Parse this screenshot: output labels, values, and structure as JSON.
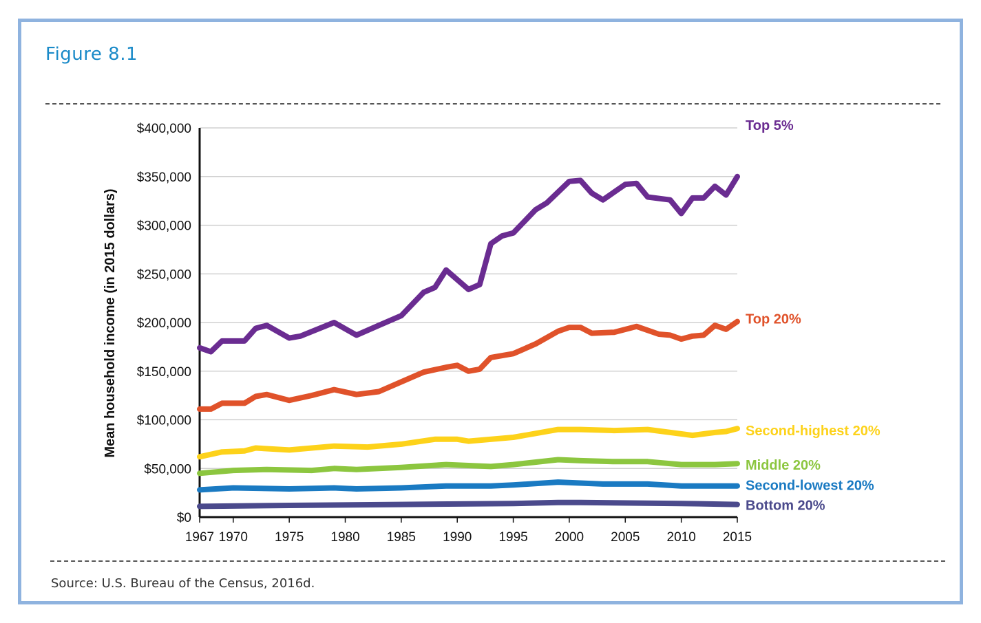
{
  "figure_title": "Figure 8.1",
  "source": "Source: U.S. Bureau of the Census, 2016d.",
  "colors": {
    "frame": "#8fb3df",
    "title": "#1a8ac8"
  },
  "chart_data": {
    "type": "line",
    "title": "",
    "xlabel": "",
    "ylabel": "Mean household income (in 2015 dollars)",
    "xlim": [
      1967,
      2015
    ],
    "ylim": [
      0,
      400000
    ],
    "xticks": [
      1967,
      1970,
      1975,
      1980,
      1985,
      1990,
      1995,
      2000,
      2005,
      2010,
      2015
    ],
    "yticks": [
      0,
      50000,
      100000,
      150000,
      200000,
      250000,
      300000,
      350000,
      400000
    ],
    "ytick_labels": [
      "$0",
      "$50,000",
      "$100,000",
      "$150,000",
      "$200,000",
      "$250,000",
      "$300,000",
      "$350,000",
      "$400,000"
    ],
    "grid": "horizontal",
    "legend": "direct labels at right end of lines",
    "series": [
      {
        "name": "Top 5%",
        "color": "#6a2c91",
        "points": [
          [
            1967,
            174000
          ],
          [
            1968,
            170000
          ],
          [
            1969,
            181000
          ],
          [
            1971,
            181000
          ],
          [
            1972,
            194000
          ],
          [
            1973,
            197000
          ],
          [
            1975,
            184000
          ],
          [
            1976,
            186000
          ],
          [
            1979,
            200000
          ],
          [
            1981,
            187000
          ],
          [
            1983,
            197000
          ],
          [
            1985,
            207000
          ],
          [
            1987,
            231000
          ],
          [
            1988,
            236000
          ],
          [
            1989,
            254000
          ],
          [
            1991,
            234000
          ],
          [
            1992,
            239000
          ],
          [
            1993,
            281000
          ],
          [
            1994,
            289000
          ],
          [
            1995,
            292000
          ],
          [
            1997,
            316000
          ],
          [
            1998,
            323000
          ],
          [
            2000,
            345000
          ],
          [
            2001,
            346000
          ],
          [
            2002,
            333000
          ],
          [
            2003,
            326000
          ],
          [
            2005,
            342000
          ],
          [
            2006,
            343000
          ],
          [
            2007,
            329000
          ],
          [
            2009,
            326000
          ],
          [
            2010,
            312000
          ],
          [
            2011,
            328000
          ],
          [
            2012,
            328000
          ],
          [
            2013,
            340000
          ],
          [
            2014,
            331000
          ],
          [
            2015,
            350000
          ]
        ]
      },
      {
        "name": "Top 20%",
        "color": "#e0522a",
        "points": [
          [
            1967,
            111000
          ],
          [
            1968,
            111000
          ],
          [
            1969,
            117000
          ],
          [
            1971,
            117000
          ],
          [
            1972,
            124000
          ],
          [
            1973,
            126000
          ],
          [
            1975,
            120000
          ],
          [
            1977,
            125000
          ],
          [
            1979,
            131000
          ],
          [
            1981,
            126000
          ],
          [
            1983,
            129000
          ],
          [
            1985,
            139000
          ],
          [
            1987,
            149000
          ],
          [
            1989,
            154000
          ],
          [
            1990,
            156000
          ],
          [
            1991,
            150000
          ],
          [
            1992,
            152000
          ],
          [
            1993,
            164000
          ],
          [
            1995,
            168000
          ],
          [
            1997,
            178000
          ],
          [
            1999,
            191000
          ],
          [
            2000,
            195000
          ],
          [
            2001,
            195000
          ],
          [
            2002,
            189000
          ],
          [
            2004,
            190000
          ],
          [
            2006,
            196000
          ],
          [
            2008,
            188000
          ],
          [
            2009,
            187000
          ],
          [
            2010,
            183000
          ],
          [
            2011,
            186000
          ],
          [
            2012,
            187000
          ],
          [
            2013,
            197000
          ],
          [
            2014,
            193000
          ],
          [
            2015,
            201000
          ]
        ]
      },
      {
        "name": "Second-highest 20%",
        "color": "#fdd21a",
        "points": [
          [
            1967,
            62000
          ],
          [
            1969,
            67000
          ],
          [
            1971,
            68000
          ],
          [
            1972,
            71000
          ],
          [
            1975,
            69000
          ],
          [
            1979,
            73000
          ],
          [
            1982,
            72000
          ],
          [
            1985,
            75000
          ],
          [
            1988,
            80000
          ],
          [
            1990,
            80000
          ],
          [
            1991,
            78000
          ],
          [
            1995,
            82000
          ],
          [
            1997,
            86000
          ],
          [
            1999,
            90000
          ],
          [
            2001,
            90000
          ],
          [
            2004,
            89000
          ],
          [
            2007,
            90000
          ],
          [
            2009,
            87000
          ],
          [
            2011,
            84000
          ],
          [
            2013,
            87000
          ],
          [
            2014,
            88000
          ],
          [
            2015,
            91000
          ]
        ]
      },
      {
        "name": "Middle 20%",
        "color": "#8cc63f",
        "points": [
          [
            1967,
            45000
          ],
          [
            1970,
            48000
          ],
          [
            1973,
            49000
          ],
          [
            1977,
            48000
          ],
          [
            1979,
            50000
          ],
          [
            1981,
            49000
          ],
          [
            1985,
            51000
          ],
          [
            1989,
            54000
          ],
          [
            1993,
            52000
          ],
          [
            1995,
            54000
          ],
          [
            1999,
            59000
          ],
          [
            2001,
            58000
          ],
          [
            2004,
            57000
          ],
          [
            2007,
            57000
          ],
          [
            2010,
            54000
          ],
          [
            2013,
            54000
          ],
          [
            2015,
            55000
          ]
        ]
      },
      {
        "name": "Second-lowest 20%",
        "color": "#1a7ac2",
        "points": [
          [
            1967,
            28000
          ],
          [
            1970,
            30000
          ],
          [
            1975,
            29000
          ],
          [
            1979,
            30000
          ],
          [
            1981,
            29000
          ],
          [
            1985,
            30000
          ],
          [
            1989,
            32000
          ],
          [
            1993,
            32000
          ],
          [
            1995,
            33000
          ],
          [
            1999,
            36000
          ],
          [
            2001,
            35000
          ],
          [
            2003,
            34000
          ],
          [
            2007,
            34000
          ],
          [
            2010,
            32000
          ],
          [
            2013,
            32000
          ],
          [
            2015,
            32000
          ]
        ]
      },
      {
        "name": "Bottom 20%",
        "color": "#4b4a8c",
        "points": [
          [
            1967,
            11000
          ],
          [
            1975,
            12000
          ],
          [
            1985,
            13000
          ],
          [
            1995,
            14000
          ],
          [
            1999,
            15000
          ],
          [
            2001,
            15000
          ],
          [
            2010,
            14000
          ],
          [
            2015,
            13000
          ]
        ]
      }
    ]
  }
}
